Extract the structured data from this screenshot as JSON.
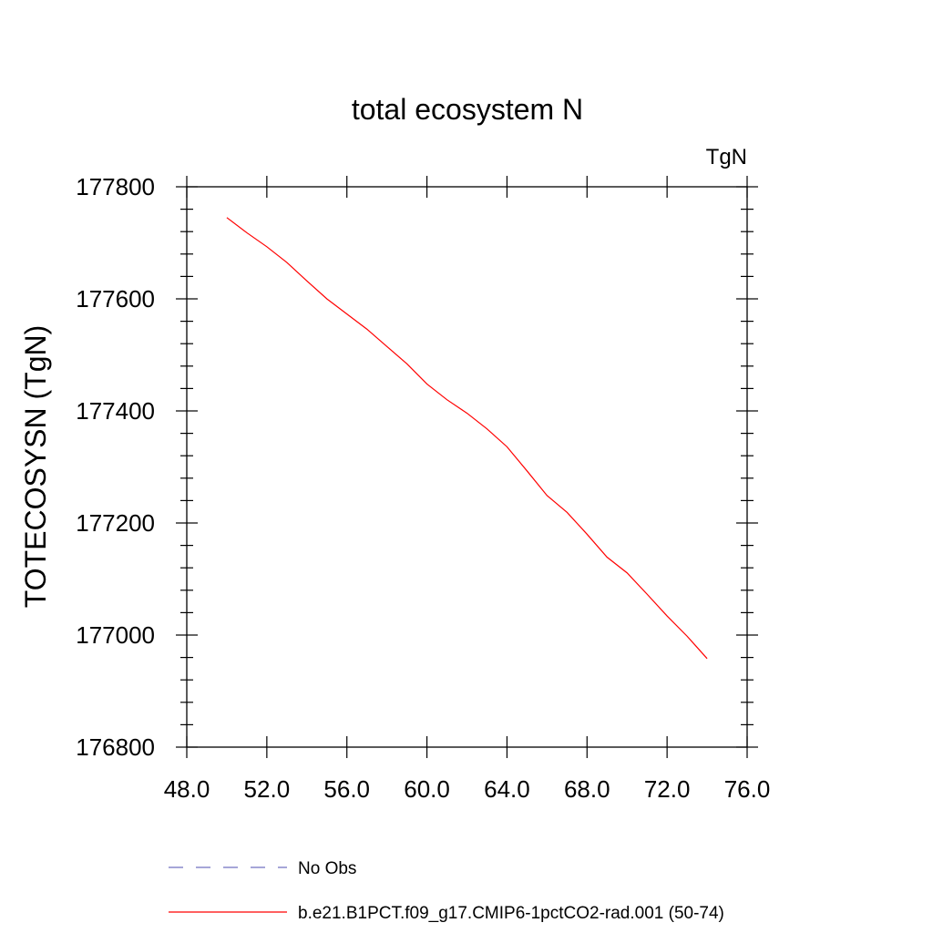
{
  "chart_data": {
    "type": "line",
    "title": "total ecosystem N",
    "units_label": "TgN",
    "ylabel": "TOTECOSYSN  (TgN)",
    "xlabel": "",
    "xlim": [
      48,
      76
    ],
    "ylim": [
      176800,
      177800
    ],
    "x_ticks": [
      48,
      52,
      56,
      60,
      64,
      68,
      72,
      76
    ],
    "x_tick_labels": [
      "48.0",
      "52.0",
      "56.0",
      "60.0",
      "64.0",
      "68.0",
      "72.0",
      "76.0"
    ],
    "y_ticks": [
      176800,
      177000,
      177200,
      177400,
      177600,
      177800
    ],
    "y_tick_labels": [
      "176800",
      "177000",
      "177200",
      "177400",
      "177600",
      "177800"
    ],
    "series": [
      {
        "name": "b.e21.B1PCT.f09_g17.CMIP6-1pctCO2-rad.001 (50-74)",
        "color": "#ff0000",
        "x": [
          50,
          51,
          52,
          53,
          54,
          55,
          56,
          57,
          58,
          59,
          60,
          61,
          62,
          63,
          64,
          65,
          66,
          67,
          68,
          69,
          70,
          71,
          72,
          73,
          74
        ],
        "y": [
          177745,
          177718,
          177693,
          177665,
          177632,
          177600,
          177573,
          177546,
          177515,
          177484,
          177448,
          177420,
          177396,
          177368,
          177336,
          177293,
          177249,
          177219,
          177180,
          177139,
          177111,
          177073,
          177034,
          176998,
          176958
        ]
      }
    ],
    "legend": [
      {
        "label": "No Obs",
        "color": "#7070c0",
        "dash": true
      },
      {
        "label": "b.e21.B1PCT.f09_g17.CMIP6-1pctCO2-rad.001 (50-74)",
        "color": "#ff0000",
        "dash": false
      }
    ],
    "legend_position": "bottom"
  }
}
